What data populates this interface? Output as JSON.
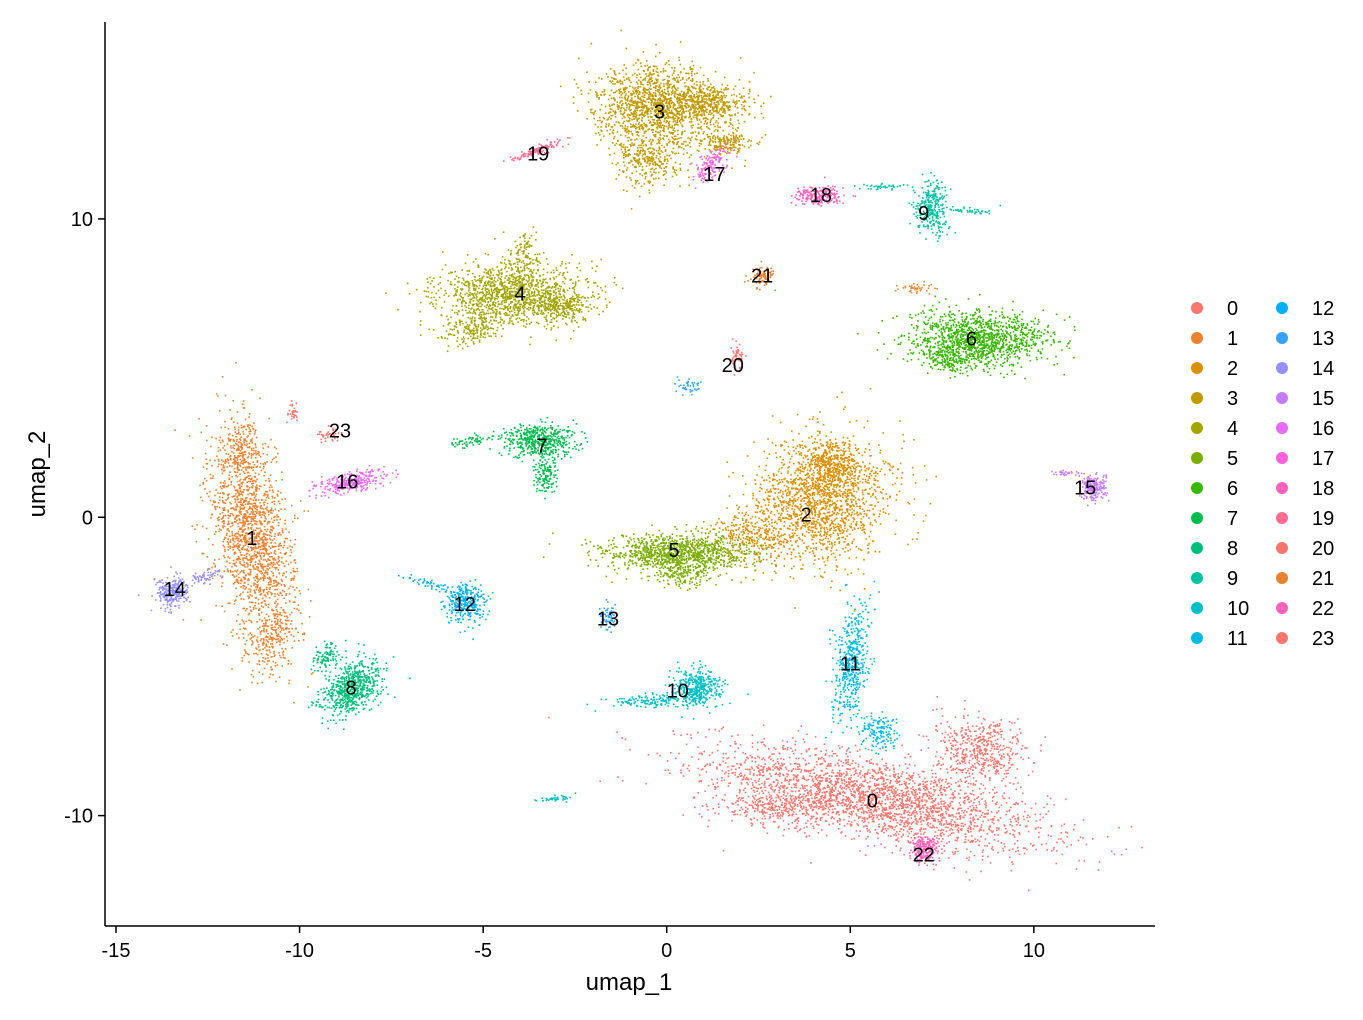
{
  "chart_data": {
    "type": "scatter",
    "title": "",
    "xlabel": "umap_1",
    "ylabel": "umap_2",
    "xlim": [
      -15.3,
      13.3
    ],
    "ylim": [
      -13.7,
      16.6
    ],
    "xticks": [
      -15,
      -10,
      -5,
      0,
      5,
      10
    ],
    "yticks": [
      -10,
      0,
      10
    ],
    "xtick_labels": [
      "-15",
      "-10",
      "-5",
      "0",
      "5",
      "10"
    ],
    "ytick_labels": [
      "-10",
      "0",
      "10"
    ],
    "grid": false,
    "legend_position": "right",
    "legend_columns": 2,
    "legend_entries": [
      "0",
      "1",
      "2",
      "3",
      "4",
      "5",
      "6",
      "7",
      "8",
      "9",
      "10",
      "11",
      "12",
      "13",
      "14",
      "15",
      "16",
      "17",
      "18",
      "19",
      "20",
      "21",
      "22",
      "23"
    ],
    "colors": [
      "#F8766D",
      "#EA8331",
      "#D89000",
      "#C09B00",
      "#A3A500",
      "#7CAE00",
      "#39B600",
      "#00BB4E",
      "#00BF7D",
      "#00C1A3",
      "#00BFC4",
      "#00BAE0",
      "#00B0F6",
      "#35A2FF",
      "#9590FF",
      "#C77CFF",
      "#E76BF3",
      "#FA62DB",
      "#FF62BC",
      "#FF6C91",
      "#F8766D",
      "#EA8331",
      "#FF62BC",
      "#F8766D"
    ],
    "clusters": [
      {
        "name": "0",
        "center": [
          5.7,
          -9.4
        ],
        "label_pos": [
          5.6,
          -9.5
        ],
        "color": "#F8766D",
        "blobs": [
          [
            5.7,
            -9.4,
            4.2,
            1.2,
            -15,
            2600
          ],
          [
            8.5,
            -7.8,
            1.2,
            0.9,
            -35,
            500
          ],
          [
            3.0,
            -9.7,
            1.4,
            0.5,
            0,
            300
          ]
        ]
      },
      {
        "name": "1",
        "center": [
          -11.3,
          -0.8
        ],
        "label_pos": [
          -11.3,
          -0.7
        ],
        "color": "#EA8331",
        "blobs": [
          [
            -11.3,
            -0.6,
            0.9,
            3.2,
            8,
            1700
          ],
          [
            -10.8,
            -4.0,
            0.5,
            1.0,
            -20,
            200
          ],
          [
            -11.6,
            2.4,
            0.5,
            0.8,
            0,
            150
          ]
        ]
      },
      {
        "name": "2",
        "center": [
          3.8,
          0.3
        ],
        "label_pos": [
          3.8,
          0.1
        ],
        "color": "#D89000",
        "blobs": [
          [
            4.2,
            0.6,
            1.6,
            1.9,
            -25,
            1700
          ],
          [
            2.3,
            -0.6,
            1.0,
            0.8,
            0,
            300
          ],
          [
            4.5,
            1.8,
            0.6,
            0.7,
            0,
            300
          ]
        ]
      },
      {
        "name": "3",
        "center": [
          -0.3,
          13.6
        ],
        "label_pos": [
          -0.2,
          13.6
        ],
        "color": "#C09B00",
        "blobs": [
          [
            -0.3,
            13.8,
            1.5,
            1.2,
            0,
            1400
          ],
          [
            1.2,
            13.9,
            1.0,
            0.6,
            0,
            400
          ],
          [
            -0.5,
            12.0,
            0.8,
            0.8,
            0,
            300
          ],
          [
            1.6,
            12.6,
            0.7,
            0.4,
            0,
            200
          ]
        ]
      },
      {
        "name": "4",
        "center": [
          -4.2,
          7.5
        ],
        "label_pos": [
          -4.0,
          7.5
        ],
        "color": "#A3A500",
        "blobs": [
          [
            -4.2,
            7.5,
            1.8,
            0.9,
            0,
            1300
          ],
          [
            -5.3,
            6.4,
            0.8,
            0.5,
            20,
            200
          ],
          [
            -2.8,
            7.1,
            0.6,
            0.4,
            0,
            200
          ],
          [
            -3.9,
            8.9,
            0.4,
            0.6,
            0,
            100
          ]
        ]
      },
      {
        "name": "5",
        "center": [
          0.3,
          -1.3
        ],
        "label_pos": [
          0.2,
          -1.1
        ],
        "color": "#7CAE00",
        "blobs": [
          [
            0.3,
            -1.2,
            1.8,
            0.6,
            0,
            1100
          ],
          [
            0.4,
            -1.9,
            0.7,
            0.4,
            0,
            150
          ]
        ]
      },
      {
        "name": "6",
        "center": [
          8.5,
          6.0
        ],
        "label_pos": [
          8.3,
          6.0
        ],
        "color": "#39B600",
        "blobs": [
          [
            8.5,
            6.0,
            1.7,
            0.8,
            0,
            1300
          ],
          [
            7.6,
            5.3,
            0.6,
            0.4,
            0,
            150
          ]
        ]
      },
      {
        "name": "7",
        "center": [
          -3.5,
          2.5
        ],
        "label_pos": [
          -3.4,
          2.4
        ],
        "color": "#00BB4E",
        "blobs": [
          [
            -3.5,
            2.6,
            0.9,
            0.5,
            0,
            500
          ],
          [
            -3.3,
            1.5,
            0.3,
            0.7,
            0,
            150
          ],
          [
            -5.3,
            2.6,
            0.5,
            0.15,
            10,
            60
          ]
        ]
      },
      {
        "name": "8",
        "center": [
          -8.6,
          -5.6
        ],
        "label_pos": [
          -8.6,
          -5.7
        ],
        "color": "#00BF7D",
        "blobs": [
          [
            -8.6,
            -5.7,
            0.6,
            0.9,
            -35,
            700
          ],
          [
            -9.3,
            -4.6,
            0.3,
            0.5,
            -30,
            100
          ]
        ]
      },
      {
        "name": "9",
        "center": [
          7.2,
          10.3
        ],
        "label_pos": [
          7.0,
          10.2
        ],
        "color": "#00C1A3",
        "blobs": [
          [
            7.2,
            10.4,
            0.4,
            0.8,
            0,
            300
          ],
          [
            5.8,
            11.1,
            0.7,
            0.1,
            0,
            40
          ],
          [
            8.2,
            10.3,
            0.5,
            0.1,
            0,
            40
          ]
        ]
      },
      {
        "name": "10",
        "center": [
          0.6,
          -5.9
        ],
        "label_pos": [
          0.3,
          -5.8
        ],
        "color": "#00BFC4",
        "blobs": [
          [
            0.8,
            -5.7,
            0.6,
            0.6,
            0,
            400
          ],
          [
            -0.5,
            -6.1,
            1.0,
            0.2,
            5,
            150
          ],
          [
            -3.0,
            -9.4,
            0.4,
            0.1,
            10,
            40
          ]
        ]
      },
      {
        "name": "11",
        "center": [
          4.9,
          -4.9
        ],
        "label_pos": [
          5.0,
          -4.9
        ],
        "color": "#00BAE0",
        "blobs": [
          [
            5.0,
            -4.9,
            0.4,
            1.8,
            -5,
            500
          ],
          [
            5.8,
            -7.2,
            0.5,
            0.6,
            0,
            150
          ]
        ]
      },
      {
        "name": "12",
        "center": [
          -5.5,
          -2.8
        ],
        "label_pos": [
          -5.5,
          -2.9
        ],
        "color": "#00B0F6",
        "blobs": [
          [
            -5.5,
            -2.9,
            0.5,
            0.6,
            0,
            300
          ],
          [
            -6.5,
            -2.2,
            0.6,
            0.15,
            -20,
            50
          ]
        ]
      },
      {
        "name": "13",
        "center": [
          -1.6,
          -3.4
        ],
        "label_pos": [
          -1.6,
          -3.4
        ],
        "color": "#35A2FF",
        "blobs": [
          [
            -1.6,
            -3.3,
            0.2,
            0.4,
            0,
            60
          ],
          [
            0.5,
            4.4,
            0.3,
            0.2,
            0,
            40
          ]
        ]
      },
      {
        "name": "14",
        "center": [
          -13.5,
          -2.5
        ],
        "label_pos": [
          -13.4,
          -2.4
        ],
        "color": "#9590FF",
        "blobs": [
          [
            -13.5,
            -2.5,
            0.4,
            0.5,
            0,
            250
          ],
          [
            -12.6,
            -2.0,
            0.4,
            0.2,
            20,
            60
          ]
        ]
      },
      {
        "name": "15",
        "center": [
          11.5,
          1.0
        ],
        "label_pos": [
          11.4,
          1.0
        ],
        "color": "#C77CFF",
        "blobs": [
          [
            11.6,
            1.0,
            0.3,
            0.4,
            0,
            200
          ],
          [
            10.8,
            1.5,
            0.4,
            0.08,
            0,
            30
          ]
        ]
      },
      {
        "name": "16",
        "center": [
          -8.6,
          1.2
        ],
        "label_pos": [
          -8.7,
          1.2
        ],
        "color": "#E76BF3",
        "blobs": [
          [
            -8.6,
            1.2,
            0.9,
            0.3,
            15,
            300
          ]
        ]
      },
      {
        "name": "17",
        "center": [
          1.3,
          11.8
        ],
        "label_pos": [
          1.3,
          11.5
        ],
        "color": "#FA62DB",
        "blobs": [
          [
            1.2,
            11.8,
            0.3,
            0.6,
            -30,
            150
          ]
        ]
      },
      {
        "name": "18",
        "center": [
          4.2,
          10.8
        ],
        "label_pos": [
          4.2,
          10.8
        ],
        "color": "#FF62BC",
        "blobs": [
          [
            4.1,
            10.8,
            0.6,
            0.3,
            0,
            200
          ]
        ]
      },
      {
        "name": "19",
        "center": [
          -3.6,
          12.3
        ],
        "label_pos": [
          -3.5,
          12.2
        ],
        "color": "#FF6C91",
        "blobs": [
          [
            -3.6,
            12.3,
            0.8,
            0.12,
            25,
            120
          ]
        ]
      },
      {
        "name": "20",
        "center": [
          1.9,
          5.1
        ],
        "label_pos": [
          1.8,
          5.1
        ],
        "color": "#F8766D",
        "blobs": [
          [
            1.9,
            5.4,
            0.15,
            0.4,
            0,
            60
          ]
        ]
      },
      {
        "name": "21",
        "center": [
          2.6,
          8.1
        ],
        "label_pos": [
          2.6,
          8.1
        ],
        "color": "#EA8331",
        "blobs": [
          [
            2.6,
            8.1,
            0.3,
            0.3,
            0,
            80
          ],
          [
            6.8,
            7.7,
            0.4,
            0.15,
            0,
            40
          ]
        ]
      },
      {
        "name": "22",
        "center": [
          7.0,
          -11.2
        ],
        "label_pos": [
          7.0,
          -11.3
        ],
        "color": "#FF62BC",
        "blobs": [
          [
            7.0,
            -11.1,
            0.3,
            0.4,
            0,
            200
          ]
        ]
      },
      {
        "name": "23",
        "center": [
          -8.9,
          2.9
        ],
        "label_pos": [
          -8.9,
          2.9
        ],
        "color": "#F8766D",
        "blobs": [
          [
            -9.2,
            2.8,
            0.3,
            0.2,
            0,
            40
          ],
          [
            -10.2,
            3.5,
            0.1,
            0.3,
            0,
            30
          ]
        ]
      }
    ]
  }
}
